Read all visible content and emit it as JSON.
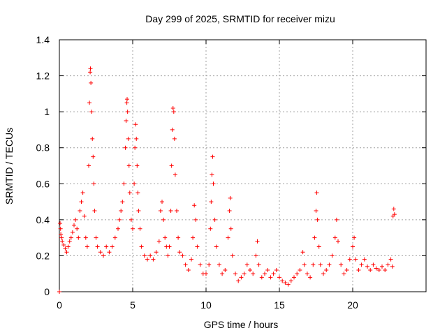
{
  "chart_data": {
    "type": "scatter",
    "title": "Day 299 of 2025, SRMTID for receiver mizu",
    "xlabel": "GPS time / hours",
    "ylabel": "SRMTID / TECUs",
    "xlim": [
      0,
      25
    ],
    "ylim": [
      0,
      1.4
    ],
    "xticks": [
      0,
      5,
      10,
      15,
      20
    ],
    "xtick_labels": [
      "0",
      "5",
      "10",
      "15",
      "20"
    ],
    "yticks": [
      0,
      0.2,
      0.4,
      0.6,
      0.8,
      1,
      1.2,
      1.4
    ],
    "ytick_labels": [
      "0",
      "0.2",
      "0.4",
      "0.6",
      "0.8",
      "1",
      "1.2",
      "1.4"
    ],
    "grid": true,
    "marker": "plus",
    "color": "#ff0000",
    "series": [
      {
        "name": "SRMTID",
        "points": [
          [
            0.0,
            0.0
          ],
          [
            0.05,
            0.38
          ],
          [
            0.08,
            0.35
          ],
          [
            0.1,
            0.32
          ],
          [
            0.15,
            0.3
          ],
          [
            0.2,
            0.28
          ],
          [
            0.3,
            0.26
          ],
          [
            0.4,
            0.24
          ],
          [
            0.5,
            0.22
          ],
          [
            0.6,
            0.25
          ],
          [
            0.7,
            0.28
          ],
          [
            0.8,
            0.3
          ],
          [
            0.9,
            0.33
          ],
          [
            1.0,
            0.37
          ],
          [
            1.1,
            0.4
          ],
          [
            1.2,
            0.35
          ],
          [
            1.3,
            0.3
          ],
          [
            1.4,
            0.45
          ],
          [
            1.5,
            0.5
          ],
          [
            1.6,
            0.55
          ],
          [
            1.7,
            0.42
          ],
          [
            1.8,
            0.3
          ],
          [
            1.9,
            0.25
          ],
          [
            2.0,
            0.7
          ],
          [
            2.05,
            1.05
          ],
          [
            2.1,
            1.22
          ],
          [
            2.12,
            1.24
          ],
          [
            2.15,
            1.16
          ],
          [
            2.2,
            1.0
          ],
          [
            2.25,
            0.85
          ],
          [
            2.3,
            0.75
          ],
          [
            2.35,
            0.6
          ],
          [
            2.4,
            0.45
          ],
          [
            2.5,
            0.3
          ],
          [
            2.6,
            0.25
          ],
          [
            2.8,
            0.22
          ],
          [
            3.0,
            0.2
          ],
          [
            3.2,
            0.25
          ],
          [
            3.4,
            0.22
          ],
          [
            3.6,
            0.25
          ],
          [
            3.8,
            0.3
          ],
          [
            4.0,
            0.35
          ],
          [
            4.1,
            0.4
          ],
          [
            4.2,
            0.45
          ],
          [
            4.3,
            0.5
          ],
          [
            4.4,
            0.6
          ],
          [
            4.5,
            0.8
          ],
          [
            4.55,
            0.95
          ],
          [
            4.6,
            1.05
          ],
          [
            4.62,
            1.07
          ],
          [
            4.65,
            1.0
          ],
          [
            4.7,
            0.85
          ],
          [
            4.75,
            0.7
          ],
          [
            4.8,
            0.55
          ],
          [
            4.9,
            0.4
          ],
          [
            5.0,
            0.35
          ],
          [
            5.1,
            0.6
          ],
          [
            5.15,
            0.8
          ],
          [
            5.2,
            0.93
          ],
          [
            5.25,
            0.85
          ],
          [
            5.3,
            0.7
          ],
          [
            5.35,
            0.55
          ],
          [
            5.4,
            0.45
          ],
          [
            5.5,
            0.35
          ],
          [
            5.6,
            0.25
          ],
          [
            5.8,
            0.2
          ],
          [
            6.0,
            0.18
          ],
          [
            6.2,
            0.2
          ],
          [
            6.4,
            0.18
          ],
          [
            6.6,
            0.22
          ],
          [
            6.8,
            0.28
          ],
          [
            6.9,
            0.45
          ],
          [
            7.0,
            0.5
          ],
          [
            7.1,
            0.4
          ],
          [
            7.2,
            0.3
          ],
          [
            7.3,
            0.25
          ],
          [
            7.4,
            0.2
          ],
          [
            7.5,
            0.25
          ],
          [
            7.6,
            0.45
          ],
          [
            7.65,
            0.7
          ],
          [
            7.7,
            0.9
          ],
          [
            7.75,
            1.02
          ],
          [
            7.8,
            1.0
          ],
          [
            7.85,
            0.85
          ],
          [
            7.9,
            0.65
          ],
          [
            8.0,
            0.45
          ],
          [
            8.1,
            0.3
          ],
          [
            8.2,
            0.22
          ],
          [
            8.4,
            0.2
          ],
          [
            8.6,
            0.15
          ],
          [
            8.8,
            0.12
          ],
          [
            9.0,
            0.18
          ],
          [
            9.1,
            0.3
          ],
          [
            9.2,
            0.48
          ],
          [
            9.3,
            0.4
          ],
          [
            9.4,
            0.25
          ],
          [
            9.6,
            0.15
          ],
          [
            9.8,
            0.1
          ],
          [
            10.0,
            0.1
          ],
          [
            10.2,
            0.15
          ],
          [
            10.3,
            0.35
          ],
          [
            10.35,
            0.5
          ],
          [
            10.4,
            0.65
          ],
          [
            10.45,
            0.75
          ],
          [
            10.5,
            0.6
          ],
          [
            10.6,
            0.4
          ],
          [
            10.7,
            0.25
          ],
          [
            10.9,
            0.15
          ],
          [
            11.1,
            0.1
          ],
          [
            11.3,
            0.12
          ],
          [
            11.5,
            0.3
          ],
          [
            11.6,
            0.45
          ],
          [
            11.65,
            0.52
          ],
          [
            11.7,
            0.35
          ],
          [
            11.8,
            0.2
          ],
          [
            12.0,
            0.1
          ],
          [
            12.2,
            0.06
          ],
          [
            12.4,
            0.08
          ],
          [
            12.6,
            0.1
          ],
          [
            12.8,
            0.15
          ],
          [
            13.0,
            0.12
          ],
          [
            13.2,
            0.1
          ],
          [
            13.4,
            0.2
          ],
          [
            13.5,
            0.28
          ],
          [
            13.6,
            0.15
          ],
          [
            13.8,
            0.08
          ],
          [
            14.0,
            0.1
          ],
          [
            14.2,
            0.12
          ],
          [
            14.4,
            0.08
          ],
          [
            14.6,
            0.1
          ],
          [
            14.8,
            0.12
          ],
          [
            15.0,
            0.08
          ],
          [
            15.2,
            0.06
          ],
          [
            15.4,
            0.05
          ],
          [
            15.6,
            0.04
          ],
          [
            15.8,
            0.06
          ],
          [
            16.0,
            0.08
          ],
          [
            16.2,
            0.1
          ],
          [
            16.4,
            0.12
          ],
          [
            16.6,
            0.22
          ],
          [
            16.7,
            0.15
          ],
          [
            16.9,
            0.1
          ],
          [
            17.1,
            0.08
          ],
          [
            17.3,
            0.15
          ],
          [
            17.4,
            0.3
          ],
          [
            17.5,
            0.45
          ],
          [
            17.55,
            0.55
          ],
          [
            17.6,
            0.4
          ],
          [
            17.7,
            0.25
          ],
          [
            17.8,
            0.15
          ],
          [
            18.0,
            0.1
          ],
          [
            18.2,
            0.12
          ],
          [
            18.4,
            0.15
          ],
          [
            18.6,
            0.2
          ],
          [
            18.8,
            0.3
          ],
          [
            18.9,
            0.4
          ],
          [
            19.0,
            0.28
          ],
          [
            19.2,
            0.15
          ],
          [
            19.4,
            0.1
          ],
          [
            19.6,
            0.12
          ],
          [
            19.8,
            0.18
          ],
          [
            20.0,
            0.25
          ],
          [
            20.1,
            0.3
          ],
          [
            20.2,
            0.18
          ],
          [
            20.4,
            0.12
          ],
          [
            20.6,
            0.15
          ],
          [
            20.8,
            0.18
          ],
          [
            21.0,
            0.14
          ],
          [
            21.2,
            0.12
          ],
          [
            21.4,
            0.15
          ],
          [
            21.6,
            0.13
          ],
          [
            21.8,
            0.12
          ],
          [
            22.0,
            0.14
          ],
          [
            22.2,
            0.12
          ],
          [
            22.4,
            0.15
          ],
          [
            22.6,
            0.18
          ],
          [
            22.7,
            0.14
          ],
          [
            22.75,
            0.42
          ],
          [
            22.8,
            0.46
          ],
          [
            22.85,
            0.43
          ]
        ]
      }
    ]
  }
}
